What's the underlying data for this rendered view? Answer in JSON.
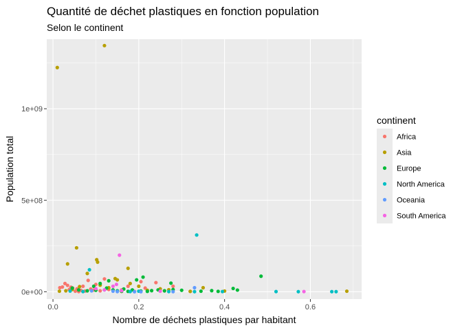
{
  "chart_data": {
    "type": "scatter",
    "title": "Quantité de déchet plastiques en fonction population",
    "subtitle": "Selon le continent",
    "xlabel": "Nombre de déchets plastiques par habitant",
    "ylabel": "Population total",
    "xlim": [
      -0.0145,
      0.7195
    ],
    "ylim": [
      -40000000,
      1380000000
    ],
    "x_ticks": [
      {
        "value": 0.0,
        "label": "0.0"
      },
      {
        "value": 0.2,
        "label": "0.2"
      },
      {
        "value": 0.4,
        "label": "0.4"
      },
      {
        "value": 0.6,
        "label": "0.6"
      }
    ],
    "y_ticks": [
      {
        "value": 0,
        "label": "0e+00"
      },
      {
        "value": 500000000,
        "label": "5e+08"
      },
      {
        "value": 1000000000,
        "label": "1e+09"
      }
    ],
    "grid": true,
    "panel_background": "#ebebeb",
    "legend": {
      "title": "continent",
      "position": "right"
    },
    "series": [
      {
        "name": "Africa",
        "color": "#f8766d",
        "points": [
          [
            0.016,
            22000000
          ],
          [
            0.022,
            26000000
          ],
          [
            0.028,
            45000000
          ],
          [
            0.034,
            35000000
          ],
          [
            0.038,
            12000000
          ],
          [
            0.042,
            25000000
          ],
          [
            0.046,
            20000000
          ],
          [
            0.052,
            3000000
          ],
          [
            0.056,
            16000000
          ],
          [
            0.06,
            1000000
          ],
          [
            0.065,
            8000000
          ],
          [
            0.07,
            30000000
          ],
          [
            0.075,
            4000000
          ],
          [
            0.082,
            62000000
          ],
          [
            0.088,
            15000000
          ],
          [
            0.095,
            9000000
          ],
          [
            0.1,
            40000000
          ],
          [
            0.11,
            5000000
          ],
          [
            0.12,
            70000000
          ],
          [
            0.13,
            12000000
          ],
          [
            0.15,
            4000000
          ],
          [
            0.16,
            10000000
          ],
          [
            0.175,
            30000000
          ],
          [
            0.19,
            2000000
          ],
          [
            0.205,
            55000000
          ],
          [
            0.215,
            20000000
          ],
          [
            0.24,
            50000000
          ],
          [
            0.26,
            5000000
          ],
          [
            0.28,
            30000000
          ],
          [
            0.32,
            2000000
          ]
        ]
      },
      {
        "name": "Asia",
        "color": "#b79f00",
        "points": [
          [
            0.01,
            1225000000
          ],
          [
            0.12,
            1345000000
          ],
          [
            0.055,
            240000000
          ],
          [
            0.102,
            175000000
          ],
          [
            0.104,
            162000000
          ],
          [
            0.034,
            152000000
          ],
          [
            0.175,
            128000000
          ],
          [
            0.08,
            100000000
          ],
          [
            0.145,
            72000000
          ],
          [
            0.15,
            65000000
          ],
          [
            0.18,
            45000000
          ],
          [
            0.2,
            30000000
          ],
          [
            0.11,
            36000000
          ],
          [
            0.062,
            28000000
          ],
          [
            0.13,
            22000000
          ],
          [
            0.25,
            16000000
          ],
          [
            0.35,
            22000000
          ],
          [
            0.27,
            11000000
          ],
          [
            0.22,
            8000000
          ],
          [
            0.4,
            4000000
          ],
          [
            0.32,
            2000000
          ],
          [
            0.03,
            5000000
          ],
          [
            0.015,
            3000000
          ],
          [
            0.045,
            12000000
          ],
          [
            0.16,
            2000000
          ],
          [
            0.685,
            3000000
          ]
        ]
      },
      {
        "name": "Europe",
        "color": "#00ba38",
        "points": [
          [
            0.045,
            20000000
          ],
          [
            0.06,
            10000000
          ],
          [
            0.08,
            5000000
          ],
          [
            0.095,
            30000000
          ],
          [
            0.11,
            45000000
          ],
          [
            0.125,
            20000000
          ],
          [
            0.13,
            60000000
          ],
          [
            0.14,
            10000000
          ],
          [
            0.15,
            5000000
          ],
          [
            0.165,
            15000000
          ],
          [
            0.175,
            2000000
          ],
          [
            0.185,
            10000000
          ],
          [
            0.195,
            65000000
          ],
          [
            0.205,
            4000000
          ],
          [
            0.21,
            80000000
          ],
          [
            0.22,
            2000000
          ],
          [
            0.23,
            6000000
          ],
          [
            0.245,
            10000000
          ],
          [
            0.26,
            5000000
          ],
          [
            0.275,
            47000000
          ],
          [
            0.28,
            12000000
          ],
          [
            0.3,
            8000000
          ],
          [
            0.345,
            3000000
          ],
          [
            0.37,
            6000000
          ],
          [
            0.385,
            2000000
          ],
          [
            0.42,
            18000000
          ],
          [
            0.43,
            9000000
          ],
          [
            0.485,
            85000000
          ],
          [
            0.16,
            3000000
          ],
          [
            0.1,
            8000000
          ]
        ]
      },
      {
        "name": "North America",
        "color": "#00bfc4",
        "points": [
          [
            0.335,
            310000000
          ],
          [
            0.085,
            120000000
          ],
          [
            0.04,
            4000000
          ],
          [
            0.07,
            1000000
          ],
          [
            0.12,
            10000000
          ],
          [
            0.15,
            2000000
          ],
          [
            0.18,
            1000000
          ],
          [
            0.2,
            3000000
          ],
          [
            0.27,
            1000000
          ],
          [
            0.33,
            500000
          ],
          [
            0.395,
            1000000
          ],
          [
            0.52,
            1000000
          ],
          [
            0.572,
            500000
          ],
          [
            0.65,
            500000
          ],
          [
            0.66,
            500000
          ]
        ]
      },
      {
        "name": "Oceania",
        "color": "#619cff",
        "points": [
          [
            0.09,
            5000000
          ],
          [
            0.14,
            3000000
          ],
          [
            0.15,
            1000000
          ],
          [
            0.19,
            200000
          ],
          [
            0.205,
            100000
          ],
          [
            0.28,
            500000
          ],
          [
            0.33,
            22000000
          ]
        ]
      },
      {
        "name": "South America",
        "color": "#f564e3",
        "points": [
          [
            0.155,
            200000000
          ],
          [
            0.148,
            40000000
          ],
          [
            0.14,
            30000000
          ],
          [
            0.1,
            17000000
          ],
          [
            0.12,
            10000000
          ],
          [
            0.16,
            6000000
          ],
          [
            0.25,
            3000000
          ],
          [
            0.585,
            1000000
          ]
        ]
      }
    ]
  }
}
